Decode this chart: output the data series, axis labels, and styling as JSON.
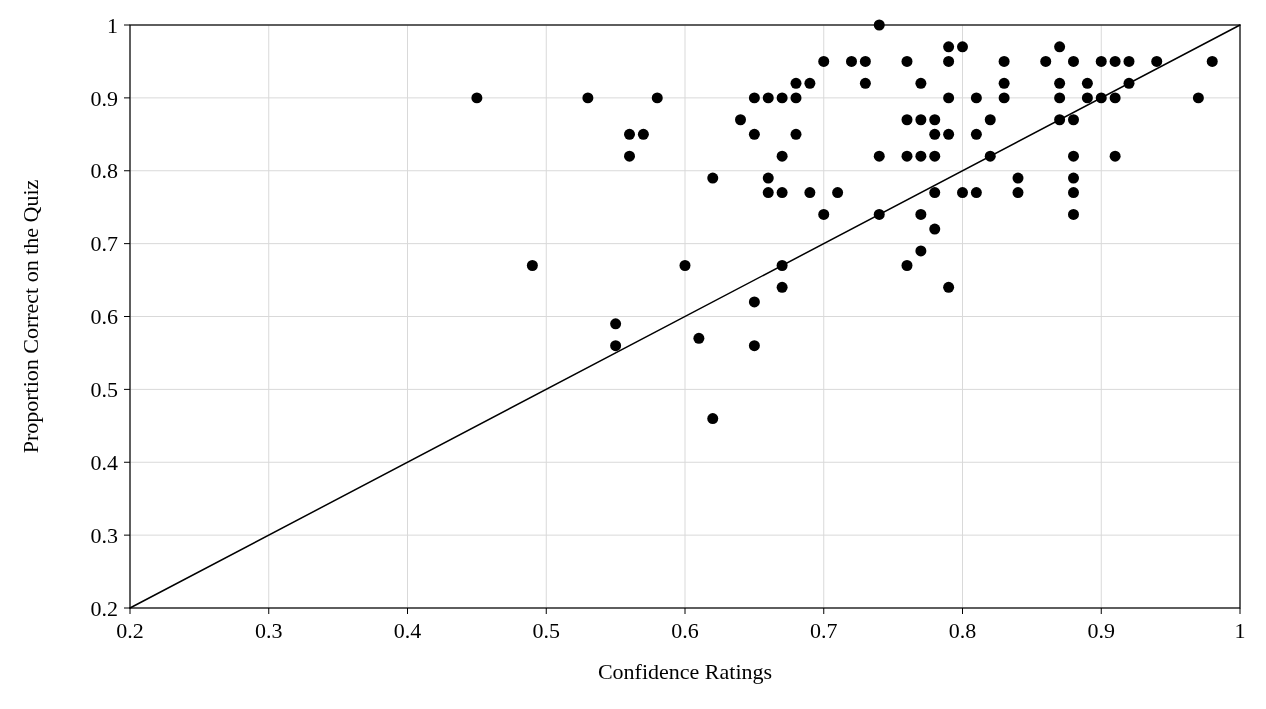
{
  "chart_data": {
    "type": "scatter",
    "xlabel": "Confidence Ratings",
    "ylabel": "Proportion Correct on the Quiz",
    "xlim": [
      0.2,
      1
    ],
    "ylim": [
      0.2,
      1
    ],
    "xticks": [
      0.2,
      0.3,
      0.4,
      0.5,
      0.6,
      0.7,
      0.8,
      0.9,
      1
    ],
    "yticks": [
      0.2,
      0.3,
      0.4,
      0.5,
      0.6,
      0.7,
      0.8,
      0.9,
      1
    ],
    "grid": true,
    "series": [
      {
        "color": "#000000",
        "marker": "circle",
        "x": [
          0.45,
          0.49,
          0.53,
          0.55,
          0.55,
          0.56,
          0.56,
          0.57,
          0.58,
          0.6,
          0.61,
          0.62,
          0.62,
          0.64,
          0.65,
          0.65,
          0.65,
          0.65,
          0.66,
          0.66,
          0.66,
          0.67,
          0.67,
          0.67,
          0.67,
          0.67,
          0.68,
          0.68,
          0.68,
          0.69,
          0.69,
          0.7,
          0.7,
          0.71,
          0.72,
          0.73,
          0.73,
          0.74,
          0.74,
          0.74,
          0.76,
          0.76,
          0.76,
          0.76,
          0.77,
          0.77,
          0.77,
          0.77,
          0.77,
          0.78,
          0.78,
          0.78,
          0.78,
          0.78,
          0.79,
          0.79,
          0.79,
          0.79,
          0.79,
          0.8,
          0.8,
          0.81,
          0.81,
          0.81,
          0.82,
          0.82,
          0.83,
          0.83,
          0.83,
          0.84,
          0.84,
          0.86,
          0.87,
          0.87,
          0.87,
          0.87,
          0.88,
          0.88,
          0.88,
          0.88,
          0.88,
          0.88,
          0.89,
          0.89,
          0.9,
          0.9,
          0.91,
          0.91,
          0.91,
          0.92,
          0.92,
          0.94,
          0.97,
          0.98
        ],
        "values": [
          0.9,
          0.67,
          0.9,
          0.59,
          0.56,
          0.85,
          0.82,
          0.85,
          0.9,
          0.67,
          0.57,
          0.79,
          0.46,
          0.87,
          0.9,
          0.85,
          0.62,
          0.56,
          0.9,
          0.79,
          0.77,
          0.9,
          0.82,
          0.77,
          0.67,
          0.64,
          0.92,
          0.9,
          0.85,
          0.92,
          0.77,
          0.95,
          0.74,
          0.77,
          0.95,
          0.95,
          0.92,
          1.0,
          0.82,
          0.74,
          0.95,
          0.87,
          0.82,
          0.67,
          0.92,
          0.87,
          0.82,
          0.74,
          0.69,
          0.87,
          0.85,
          0.82,
          0.77,
          0.72,
          0.97,
          0.95,
          0.9,
          0.85,
          0.64,
          0.97,
          0.77,
          0.9,
          0.85,
          0.77,
          0.87,
          0.82,
          0.95,
          0.92,
          0.9,
          0.79,
          0.77,
          0.95,
          0.97,
          0.92,
          0.9,
          0.87,
          0.95,
          0.87,
          0.82,
          0.79,
          0.77,
          0.74,
          0.92,
          0.9,
          0.95,
          0.9,
          0.95,
          0.9,
          0.82,
          0.95,
          0.92,
          0.95,
          0.9,
          0.95
        ]
      },
      {
        "type": "line",
        "color": "#000000",
        "marker": "none",
        "x": [
          0.2,
          1
        ],
        "values": [
          0.2,
          1
        ]
      }
    ]
  }
}
